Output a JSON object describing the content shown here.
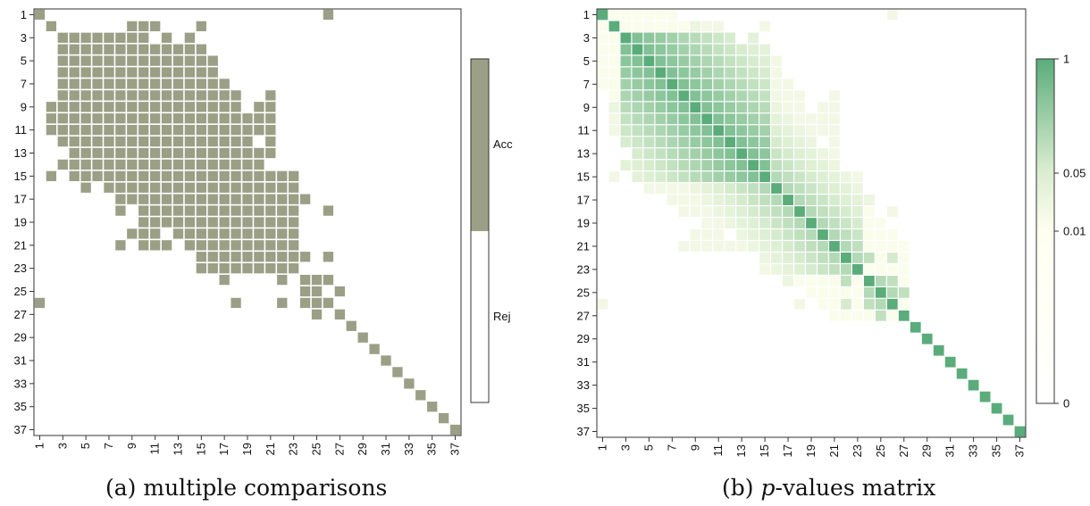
{
  "chart_data": [
    {
      "type": "heatmap",
      "title": "",
      "n": 37,
      "tick_labels": [
        "1",
        "3",
        "5",
        "7",
        "9",
        "11",
        "13",
        "15",
        "17",
        "19",
        "21",
        "23",
        "25",
        "27",
        "29",
        "31",
        "33",
        "35",
        "37"
      ],
      "accepted_cells_by_row": {
        "1": [
          1,
          26
        ],
        "2": [
          2,
          9,
          10,
          11,
          15
        ],
        "3": [
          3,
          4,
          5,
          6,
          7,
          8,
          9,
          10,
          12,
          14
        ],
        "4": [
          3,
          4,
          5,
          6,
          7,
          8,
          9,
          10,
          11,
          12,
          13,
          14,
          15
        ],
        "5": [
          3,
          4,
          5,
          6,
          7,
          8,
          9,
          10,
          11,
          12,
          13,
          14,
          15,
          16
        ],
        "6": [
          3,
          4,
          5,
          6,
          7,
          8,
          9,
          10,
          11,
          12,
          13,
          14,
          15,
          16
        ],
        "7": [
          3,
          4,
          5,
          6,
          7,
          8,
          9,
          10,
          11,
          12,
          13,
          14,
          15,
          16,
          17
        ],
        "8": [
          3,
          4,
          5,
          6,
          7,
          8,
          9,
          10,
          11,
          12,
          13,
          14,
          15,
          16,
          17,
          18,
          21
        ],
        "9": [
          2,
          3,
          4,
          5,
          6,
          7,
          8,
          9,
          10,
          11,
          12,
          13,
          14,
          15,
          16,
          17,
          18,
          20,
          21
        ],
        "10": [
          2,
          3,
          4,
          5,
          6,
          7,
          8,
          9,
          10,
          11,
          12,
          13,
          14,
          15,
          16,
          17,
          18,
          19,
          20,
          21
        ],
        "11": [
          2,
          3,
          4,
          5,
          6,
          7,
          8,
          9,
          10,
          11,
          12,
          13,
          14,
          15,
          16,
          17,
          18,
          19,
          20,
          21
        ],
        "12": [
          3,
          4,
          5,
          6,
          7,
          8,
          9,
          10,
          11,
          12,
          13,
          14,
          15,
          16,
          17,
          18,
          19,
          21
        ],
        "13": [
          4,
          5,
          6,
          7,
          8,
          9,
          10,
          11,
          12,
          13,
          14,
          15,
          16,
          17,
          18,
          19,
          20,
          21
        ],
        "14": [
          3,
          4,
          5,
          6,
          7,
          8,
          9,
          10,
          11,
          12,
          13,
          14,
          15,
          16,
          17,
          18,
          19,
          20
        ],
        "15": [
          2,
          4,
          5,
          6,
          7,
          8,
          9,
          10,
          11,
          12,
          13,
          14,
          15,
          16,
          17,
          18,
          19,
          20,
          21,
          22,
          23
        ],
        "16": [
          5,
          7,
          8,
          9,
          10,
          11,
          12,
          13,
          14,
          15,
          16,
          17,
          18,
          19,
          20,
          21,
          22,
          23
        ],
        "17": [
          8,
          9,
          10,
          11,
          12,
          13,
          14,
          15,
          16,
          17,
          18,
          19,
          20,
          21,
          22,
          23,
          24
        ],
        "18": [
          8,
          10,
          11,
          12,
          13,
          14,
          15,
          16,
          17,
          18,
          19,
          20,
          21,
          22,
          23,
          26
        ],
        "19": [
          10,
          11,
          12,
          13,
          14,
          15,
          16,
          17,
          18,
          19,
          20,
          21,
          22,
          23
        ],
        "20": [
          9,
          10,
          11,
          13,
          14,
          15,
          16,
          17,
          18,
          19,
          20,
          21,
          22,
          23
        ],
        "21": [
          8,
          10,
          11,
          12,
          14,
          15,
          16,
          17,
          18,
          19,
          20,
          21,
          22,
          23
        ],
        "22": [
          15,
          16,
          17,
          18,
          19,
          20,
          21,
          22,
          23,
          24,
          26
        ],
        "23": [
          15,
          16,
          17,
          18,
          19,
          20,
          21,
          22,
          23
        ],
        "24": [
          17,
          22,
          24,
          25,
          26
        ],
        "25": [
          24,
          25,
          27
        ],
        "26": [
          1,
          18,
          22,
          24,
          25,
          26
        ],
        "27": [
          25,
          27
        ],
        "28": [
          28
        ],
        "29": [
          29
        ],
        "30": [
          30
        ],
        "31": [
          31
        ],
        "32": [
          32
        ],
        "33": [
          33
        ],
        "34": [
          34
        ],
        "35": [
          35
        ],
        "36": [
          36
        ],
        "37": [
          37
        ]
      },
      "colorbar": {
        "labels": [
          "Acc",
          "Rej"
        ],
        "accept_color": "#9b9f85",
        "reject_color": "#ffffff"
      }
    },
    {
      "type": "heatmap",
      "title": "",
      "n": 37,
      "tick_labels": [
        "1",
        "3",
        "5",
        "7",
        "9",
        "11",
        "13",
        "15",
        "17",
        "19",
        "21",
        "23",
        "25",
        "27",
        "29",
        "31",
        "33",
        "35",
        "37"
      ],
      "colorscale": {
        "low": "#fffff0",
        "mid": "#d8eccf",
        "high": "#5aac7a"
      },
      "colorbar": {
        "ticks": [
          "1",
          "0.05",
          "0.01",
          "0"
        ]
      }
    }
  ],
  "captions": {
    "a": "(a) multiple comparisons",
    "b_italic": "p",
    "b_rest": "-values matrix"
  }
}
